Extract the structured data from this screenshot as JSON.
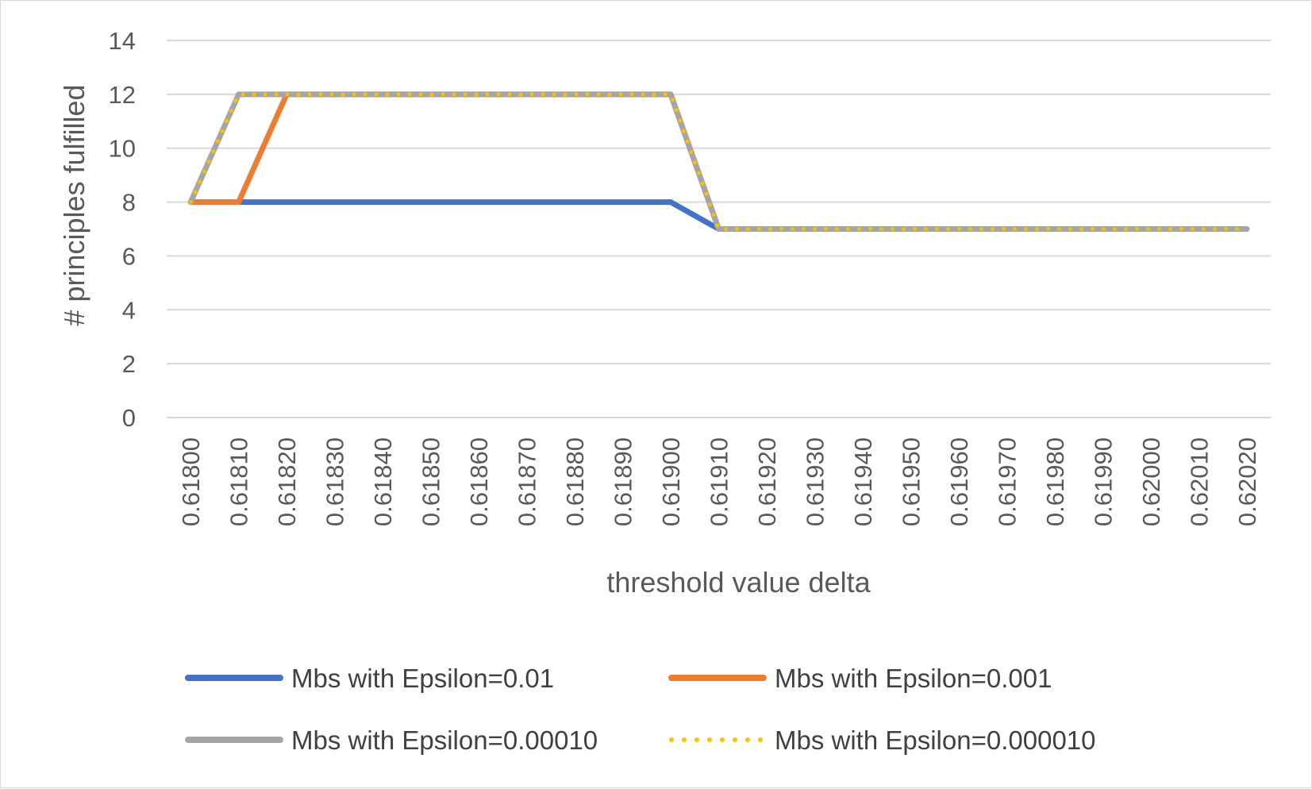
{
  "chart_data": {
    "type": "line",
    "title": "",
    "xlabel": "threshold value delta",
    "ylabel": "# principles fulfilled",
    "ylim": [
      0,
      14
    ],
    "yticks": [
      0,
      2,
      4,
      6,
      8,
      10,
      12,
      14
    ],
    "grid": true,
    "legend_position": "bottom",
    "categories": [
      "0.61800",
      "0.61810",
      "0.61820",
      "0.61830",
      "0.61840",
      "0.61850",
      "0.61860",
      "0.61870",
      "0.61880",
      "0.61890",
      "0.61900",
      "0.61910",
      "0.61920",
      "0.61930",
      "0.61940",
      "0.61950",
      "0.61960",
      "0.61970",
      "0.61980",
      "0.61990",
      "0.62000",
      "0.62010",
      "0.62020"
    ],
    "series": [
      {
        "name": "Mbs with Epsilon=0.01",
        "color": "#4472C4",
        "style": "solid",
        "values": [
          8,
          8,
          8,
          8,
          8,
          8,
          8,
          8,
          8,
          8,
          8,
          7,
          7,
          7,
          7,
          7,
          7,
          7,
          7,
          7,
          7,
          7,
          7
        ]
      },
      {
        "name": "Mbs with Epsilon=0.001",
        "color": "#ED7D31",
        "style": "solid",
        "values": [
          8,
          8,
          12,
          12,
          12,
          12,
          12,
          12,
          12,
          12,
          12,
          7,
          7,
          7,
          7,
          7,
          7,
          7,
          7,
          7,
          7,
          7,
          7
        ]
      },
      {
        "name": "Mbs with Epsilon=0.00010",
        "color": "#A5A5A5",
        "style": "solid",
        "values": [
          8,
          12,
          12,
          12,
          12,
          12,
          12,
          12,
          12,
          12,
          12,
          7,
          7,
          7,
          7,
          7,
          7,
          7,
          7,
          7,
          7,
          7,
          7
        ]
      },
      {
        "name": "Mbs with Epsilon=0.000010",
        "color": "#FFC000",
        "style": "dotted",
        "values": [
          8,
          12,
          12,
          12,
          12,
          12,
          12,
          12,
          12,
          12,
          12,
          7,
          7,
          7,
          7,
          7,
          7,
          7,
          7,
          7,
          7,
          7,
          7
        ]
      }
    ]
  }
}
